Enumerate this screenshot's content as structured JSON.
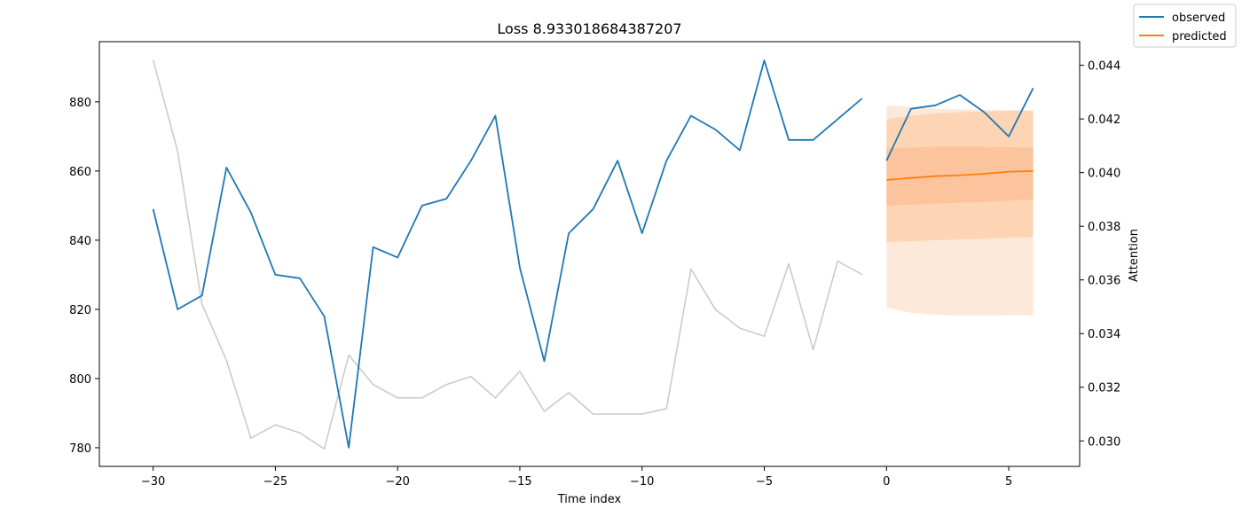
{
  "chart_data": {
    "type": "line",
    "title": "Loss 8.933018684387207",
    "xlabel": "Time index",
    "ylabel": "",
    "y2label": "Attention",
    "xlim": [
      -32.2,
      7.9
    ],
    "ylim": [
      774.6,
      897.4
    ],
    "y2lim": [
      0.02905,
      0.04488
    ],
    "x_ticks": [
      -30,
      -25,
      -20,
      -15,
      -10,
      -5,
      0,
      5
    ],
    "x_tick_labels": [
      "−30",
      "−25",
      "−20",
      "−15",
      "−10",
      "−5",
      "0",
      "5"
    ],
    "y_ticks": [
      780,
      800,
      820,
      840,
      860,
      880
    ],
    "y_tick_labels": [
      "780",
      "800",
      "820",
      "840",
      "860",
      "880"
    ],
    "y2_ticks": [
      0.03,
      0.032,
      0.034,
      0.036,
      0.038,
      0.04,
      0.042,
      0.044
    ],
    "y2_tick_labels": [
      "0.030",
      "0.032",
      "0.034",
      "0.036",
      "0.038",
      "0.040",
      "0.042",
      "0.044"
    ],
    "grid": false,
    "legend_position": "top-right",
    "legend": [
      {
        "label": "observed",
        "color": "#1f77b4"
      },
      {
        "label": "predicted",
        "color": "#ff7f0e"
      }
    ],
    "series": [
      {
        "name": "observed",
        "color": "#1f77b4",
        "x": [
          -30,
          -29,
          -28,
          -27,
          -26,
          -25,
          -24,
          -23,
          -22,
          -21,
          -20,
          -19,
          -18,
          -17,
          -16,
          -15,
          -14,
          -13,
          -12,
          -11,
          -10,
          -9,
          -8,
          -7,
          -6,
          -5,
          -4,
          -3,
          -2,
          -1
        ],
        "y": [
          849,
          820,
          824,
          861,
          848,
          830,
          829,
          818,
          780,
          838,
          835,
          850,
          852,
          863,
          876,
          832,
          805,
          842,
          849,
          863,
          842,
          863,
          876,
          872,
          866,
          892,
          869,
          869,
          875,
          881
        ]
      },
      {
        "name": "observed",
        "color": "#1f77b4",
        "x": [
          0,
          1,
          2,
          3,
          4,
          5,
          6
        ],
        "y": [
          863,
          878,
          879,
          882,
          877,
          870,
          884
        ]
      },
      {
        "name": "predicted",
        "color": "#ff7f0e",
        "x": [
          0,
          1,
          2,
          3,
          4,
          5,
          6
        ],
        "y": [
          857.4,
          858.0,
          858.5,
          858.8,
          859.2,
          859.8,
          860.0
        ]
      },
      {
        "name": "attention",
        "axis": "right",
        "color": "#c8c8c8",
        "x": [
          -30,
          -29,
          -28,
          -27,
          -26,
          -25,
          -24,
          -23,
          -22,
          -21,
          -20,
          -19,
          -18,
          -17,
          -16,
          -15,
          -14,
          -13,
          -12,
          -11,
          -10,
          -9,
          -8,
          -7,
          -6,
          -5,
          -4,
          -3,
          -2,
          -1
        ],
        "y": [
          0.0442,
          0.0408,
          0.0351,
          0.033,
          0.0301,
          0.0306,
          0.0303,
          0.0297,
          0.0332,
          0.0321,
          0.0316,
          0.0316,
          0.0321,
          0.0324,
          0.0316,
          0.0326,
          0.0311,
          0.0318,
          0.031,
          0.031,
          0.031,
          0.0312,
          0.0364,
          0.0349,
          0.0342,
          0.0339,
          0.0366,
          0.0334,
          0.0367,
          0.0362
        ]
      }
    ],
    "quantile_bands": {
      "x": [
        0,
        1,
        2,
        3,
        4,
        5,
        6
      ],
      "bands": [
        {
          "color": "#fde9d9",
          "lower": [
            820.5,
            819.0,
            818.5,
            818.2,
            818.2,
            818.3,
            818.3
          ],
          "upper": [
            879.0,
            878.5,
            878.0,
            877.8,
            877.7,
            877.6,
            877.5
          ]
        },
        {
          "color": "#fdd5b4",
          "lower": [
            839.5,
            839.7,
            840.0,
            840.2,
            840.4,
            840.7,
            841.0
          ],
          "upper": [
            875.0,
            876.0,
            876.7,
            877.0,
            877.2,
            877.4,
            877.4
          ]
        },
        {
          "color": "#fcc49c",
          "lower": [
            850.0,
            850.3,
            850.6,
            850.8,
            851.0,
            851.4,
            851.8
          ],
          "upper": [
            866.5,
            866.8,
            867.0,
            867.0,
            867.0,
            866.9,
            866.8
          ]
        }
      ]
    }
  }
}
